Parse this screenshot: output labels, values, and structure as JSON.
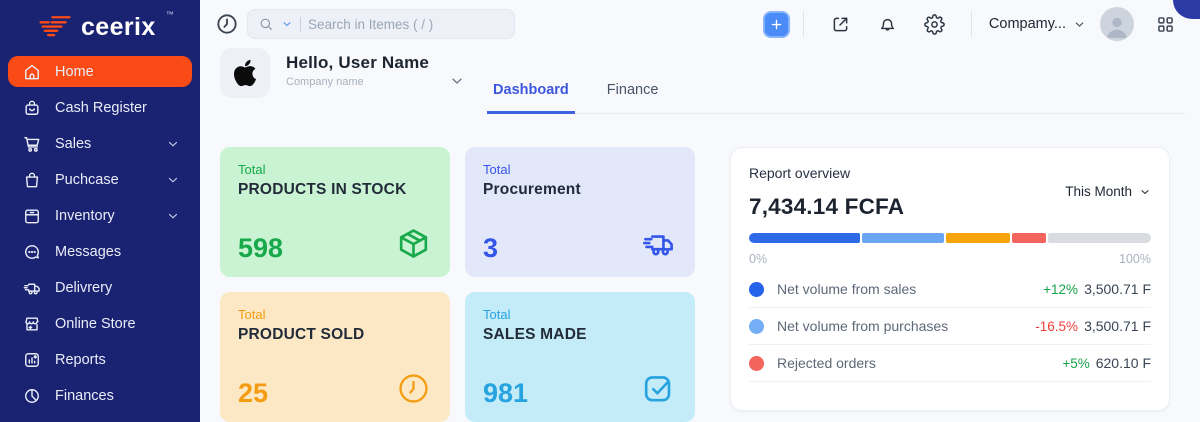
{
  "brand": {
    "logo_text": "ceerix",
    "trademark": "™",
    "mark_icon": "brand-checkmark-icon",
    "accent_color": "#fa4a15",
    "sidebar_color": "#1a2272"
  },
  "sidebar": {
    "items": [
      {
        "label": "Home",
        "icon": "home-icon",
        "active": true,
        "chevron": false
      },
      {
        "label": "Cash Register",
        "icon": "cash-register-icon",
        "active": false,
        "chevron": false
      },
      {
        "label": "Sales",
        "icon": "cart-icon",
        "active": false,
        "chevron": true
      },
      {
        "label": "Puchcase",
        "icon": "bag-icon",
        "active": false,
        "chevron": true
      },
      {
        "label": "Inventory",
        "icon": "inventory-icon",
        "active": false,
        "chevron": true
      },
      {
        "label": "Messages",
        "icon": "chat-icon",
        "active": false,
        "chevron": false
      },
      {
        "label": "Delivrery",
        "icon": "truck-icon",
        "active": false,
        "chevron": false
      },
      {
        "label": "Online Store",
        "icon": "store-icon",
        "active": false,
        "chevron": false
      },
      {
        "label": "Reports",
        "icon": "reports-icon",
        "active": false,
        "chevron": false
      },
      {
        "label": "Finances",
        "icon": "finances-icon",
        "active": false,
        "chevron": false
      }
    ]
  },
  "topbar": {
    "history_icon": "history-icon",
    "search": {
      "placeholder": "Search in Itemes ( / )",
      "icon": "search-icon",
      "chevron_icon": "chevron-down-icon"
    },
    "plus_icon": "plus-icon",
    "action_icons": [
      "external-link-icon",
      "bell-icon",
      "gear-icon"
    ],
    "company": {
      "label": "Compamy...",
      "chevron_icon": "chevron-down-icon"
    },
    "avatar_icon": "user-avatar-icon",
    "apps_icon": "apps-grid-icon"
  },
  "header": {
    "avatar_icon": "apple-logo-icon",
    "greeting": "Hello, User Name",
    "company_subtitle": "Company name",
    "chevron_icon": "chevron-down-icon",
    "tabs": [
      {
        "label": "Dashboard",
        "active": true
      },
      {
        "label": "Finance",
        "active": false
      }
    ]
  },
  "cards": [
    {
      "eyebrow": "Total",
      "title": "PRODUCTS IN STOCK",
      "value": "598",
      "icon": "package-icon",
      "bg": "#c9f3d2",
      "accent": "#18a94b"
    },
    {
      "eyebrow": "Total",
      "title": "Procurement",
      "value": "3",
      "icon": "delivery-truck-icon",
      "bg": "#e2e8fa",
      "accent": "#3355e9"
    },
    {
      "eyebrow": "Total",
      "title": "PRODUCT SOLD",
      "value": "25",
      "icon": "clock-circle-icon",
      "bg": "#fce8c5",
      "accent": "#f59d12"
    },
    {
      "eyebrow": "Total",
      "title": "SALES MADE",
      "value": "981",
      "icon": "check-square-icon",
      "bg": "#c4ebf8",
      "accent": "#27a3df"
    }
  ],
  "report": {
    "title": "Report overview",
    "period_selector": "This Month",
    "period_chevron_icon": "chevron-down-icon",
    "amount": "7,434.14 FCFA",
    "scale_min": "0%",
    "scale_max": "100%",
    "bar_segments": [
      {
        "name": "net-sales",
        "color": "#2e6ae8",
        "pct": 27.5
      },
      {
        "name": "net-purchases",
        "color": "#6aa6f2",
        "pct": 20.5
      },
      {
        "name": "orders",
        "color": "#f7a40c",
        "pct": 16.0
      },
      {
        "name": "rejected",
        "color": "#f4645e",
        "pct": 8.5
      },
      {
        "name": "remainder",
        "color": "#d8dce1",
        "pct": 27.5
      }
    ],
    "rows": [
      {
        "dot_color": "#2563eb",
        "label": "Net volume from sales",
        "change": "+12%",
        "change_dir": "up",
        "value": "3,500.71 F"
      },
      {
        "dot_color": "#74aef5",
        "label": "Net volume from purchases",
        "change": "-16.5%",
        "change_dir": "down",
        "value": "3,500.71 F"
      },
      {
        "dot_color": "#f4645e",
        "label": "Rejected orders",
        "change": "+5%",
        "change_dir": "up",
        "value": "620.10 F"
      }
    ]
  }
}
